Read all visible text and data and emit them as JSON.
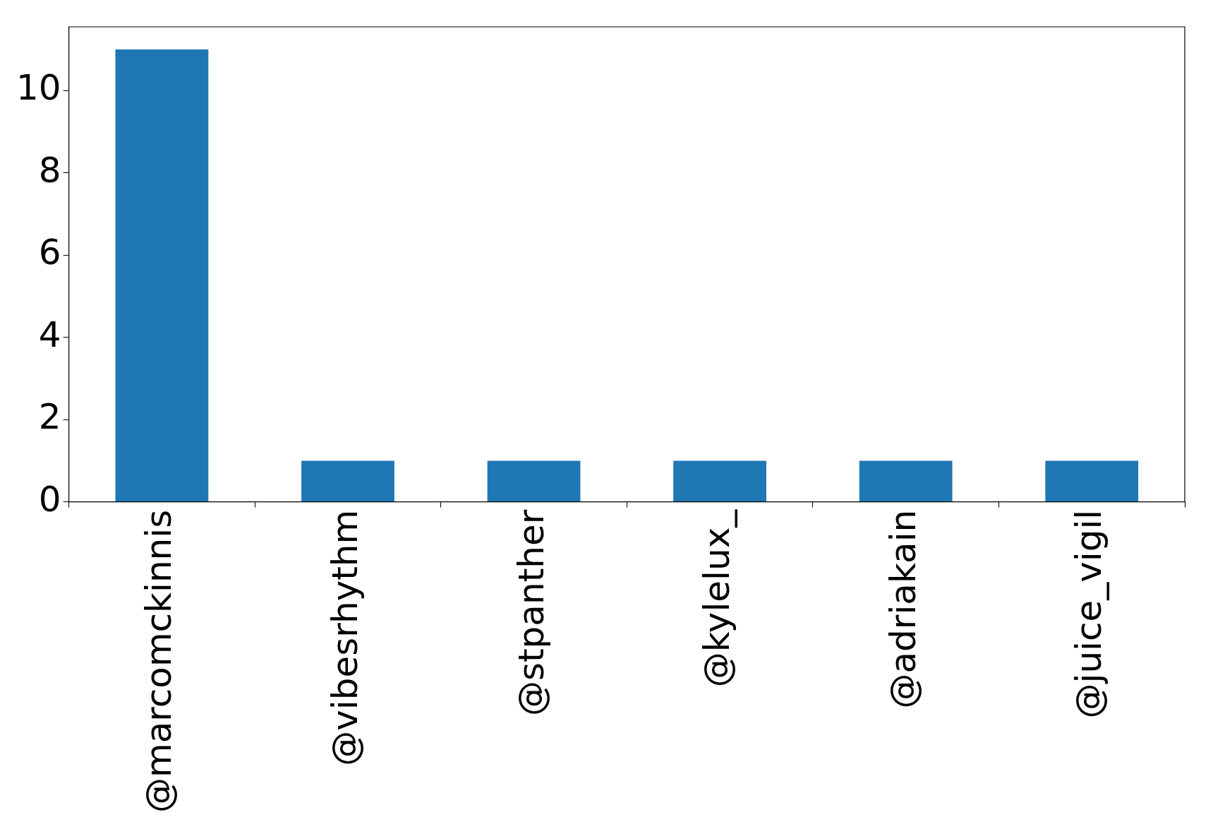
{
  "chart_data": {
    "type": "bar",
    "categories": [
      "@marcomckinnis",
      "@vibesrhythm",
      "@stpanther",
      "@kylelux_",
      "@adriakain",
      "@juice_vigil"
    ],
    "values": [
      11,
      1,
      1,
      1,
      1,
      1
    ],
    "color": "#1f77b4",
    "ylim": [
      0,
      11.55
    ],
    "yticks": [
      0,
      2,
      4,
      6,
      8,
      10
    ],
    "grid": false,
    "legend": false
  }
}
